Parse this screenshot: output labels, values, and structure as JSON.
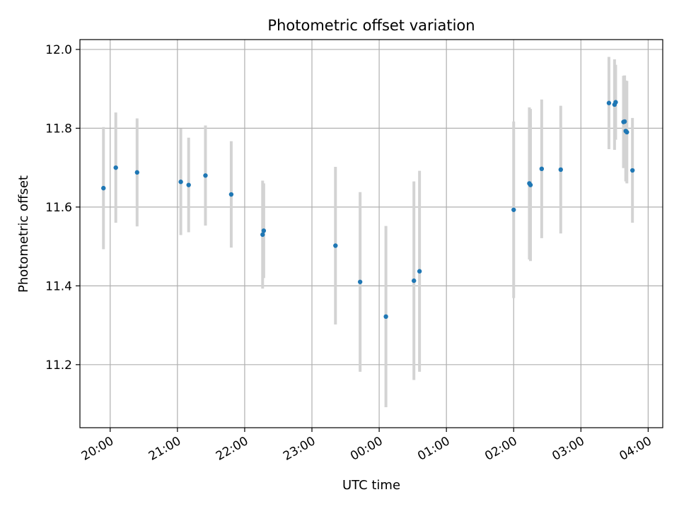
{
  "chart_data": {
    "type": "scatter",
    "title": "Photometric offset variation",
    "xlabel": "UTC time",
    "ylabel": "Photometric offset",
    "x_ticks": [
      "20:00",
      "21:00",
      "22:00",
      "23:00",
      "00:00",
      "01:00",
      "02:00",
      "03:00",
      "04:00"
    ],
    "y_ticks": [
      "11.2",
      "11.4",
      "11.6",
      "11.8",
      "12.0"
    ],
    "xlim": [
      "19:33",
      "04:13"
    ],
    "ylim": [
      11.04,
      12.025
    ],
    "grid": true,
    "colors": {
      "points": "#1f77b4",
      "errorbars": "#d3d3d3",
      "grid": "#b0b0b0"
    },
    "points": [
      {
        "x": "19:54",
        "y": 11.648,
        "err": 0.155
      },
      {
        "x": "20:05",
        "y": 11.7,
        "err": 0.14
      },
      {
        "x": "20:24",
        "y": 11.688,
        "err": 0.137
      },
      {
        "x": "21:03",
        "y": 11.664,
        "err": 0.135
      },
      {
        "x": "21:10",
        "y": 11.656,
        "err": 0.12
      },
      {
        "x": "21:25",
        "y": 11.68,
        "err": 0.127
      },
      {
        "x": "21:48",
        "y": 11.632,
        "err": 0.135
      },
      {
        "x": "22:16",
        "y": 11.53,
        "err": 0.137
      },
      {
        "x": "22:17",
        "y": 11.54,
        "err": 0.12
      },
      {
        "x": "23:21",
        "y": 11.502,
        "err": 0.2
      },
      {
        "x": "23:43",
        "y": 11.41,
        "err": 0.228
      },
      {
        "x": "00:06",
        "y": 11.322,
        "err": 0.23
      },
      {
        "x": "00:31",
        "y": 11.413,
        "err": 0.252
      },
      {
        "x": "00:36",
        "y": 11.437,
        "err": 0.255
      },
      {
        "x": "02:00",
        "y": 11.593,
        "err": 0.224
      },
      {
        "x": "02:14",
        "y": 11.66,
        "err": 0.193
      },
      {
        "x": "02:15",
        "y": 11.656,
        "err": 0.193
      },
      {
        "x": "02:25",
        "y": 11.697,
        "err": 0.176
      },
      {
        "x": "02:42",
        "y": 11.695,
        "err": 0.162
      },
      {
        "x": "03:25",
        "y": 11.864,
        "err": 0.117
      },
      {
        "x": "03:30",
        "y": 11.86,
        "err": 0.115
      },
      {
        "x": "03:31",
        "y": 11.866,
        "err": 0.095
      },
      {
        "x": "03:38",
        "y": 11.816,
        "err": 0.117
      },
      {
        "x": "03:39",
        "y": 11.817,
        "err": 0.117
      },
      {
        "x": "03:40",
        "y": 11.793,
        "err": 0.128
      },
      {
        "x": "03:41",
        "y": 11.79,
        "err": 0.13
      },
      {
        "x": "03:46",
        "y": 11.693,
        "err": 0.133
      }
    ]
  }
}
